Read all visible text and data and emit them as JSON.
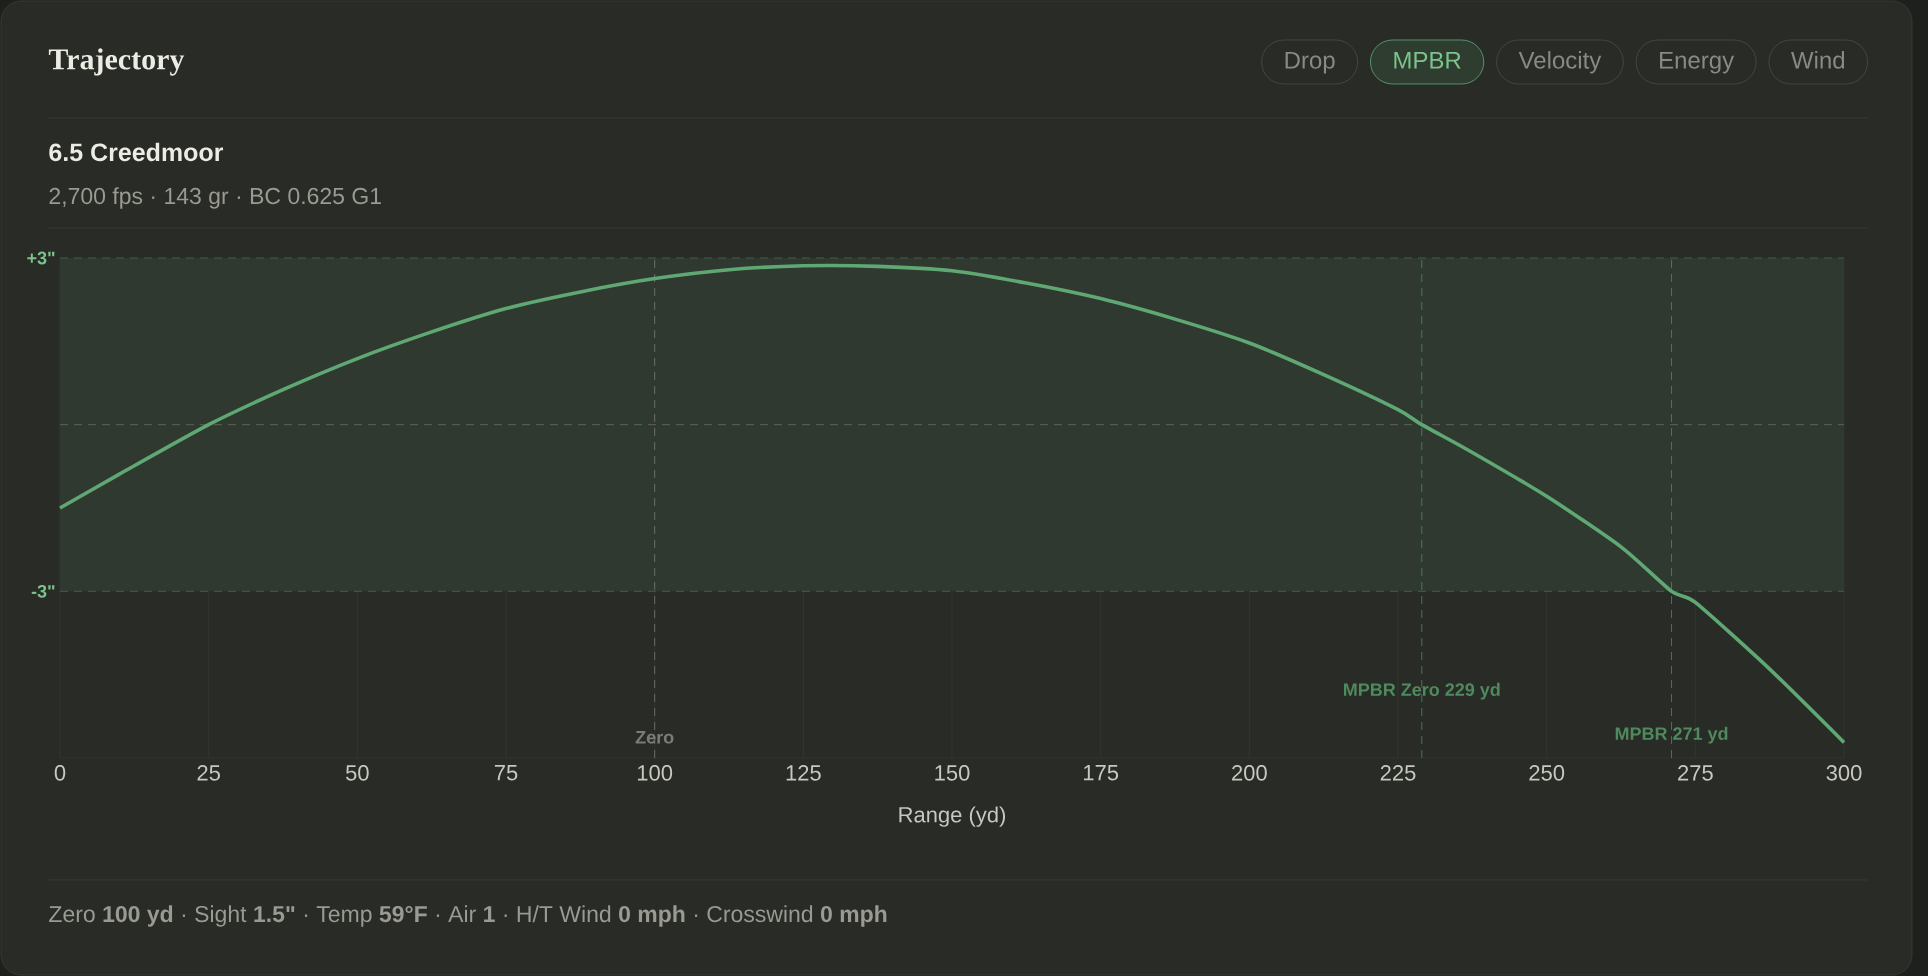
{
  "chart_data": {
    "type": "line",
    "title": "Trajectory",
    "subtitle": "6.5 Creedmoor",
    "xlabel": "Range (yd)",
    "annotations": [
      "2,700 fps · 143 gr · BC 0.625 G1",
      "Zero **100 yd** · Sight **1.5\"** · Temp **59°F** · Air **1** · H/T Wind **0 mph** · Crosswind **0 mph**",
      "Drop",
      "MPBR",
      "Velocity",
      "Energy",
      "Wind"
    ],
    "series": [
      {
        "color": "#5fa873",
        "x": [
          0,
          10,
          25,
          37.5,
          50,
          62.5,
          75,
          87.5,
          100,
          112.5,
          125,
          137.5,
          150,
          162.5,
          175,
          187.5,
          200,
          212.5,
          225,
          229,
          237.5,
          250,
          262.5,
          271,
          275,
          287.5,
          300
        ],
        "values": [
          -1.5,
          -0.89,
          0,
          0.63,
          1.19,
          1.67,
          2.09,
          2.39,
          2.63,
          2.79,
          2.86,
          2.85,
          2.77,
          2.55,
          2.27,
          1.9,
          1.47,
          0.9,
          0.27,
          0,
          -0.5,
          -1.29,
          -2.2,
          -3,
          -3.2,
          -4.4,
          -5.72
        ]
      }
    ],
    "xlim": [
      0,
      300
    ],
    "xticks": [
      0,
      25,
      50,
      75,
      100,
      125,
      150,
      175,
      200,
      225,
      250,
      275,
      300
    ],
    "ylim": [
      -6,
      3
    ],
    "yticks": [
      {
        "value": 3,
        "label": "+3\""
      },
      {
        "value": -3,
        "label": "-3\""
      }
    ],
    "grid": "x",
    "bands": [
      {
        "axis": "y",
        "from": -3,
        "to": 3,
        "color": "#2f3930"
      }
    ],
    "ref_lines": [
      {
        "axis": "y",
        "value": 3,
        "color": "#4a6a4f",
        "line_style": "dashed"
      },
      {
        "axis": "y",
        "value": 0,
        "color": "#676b63",
        "line_style": "dashed"
      },
      {
        "axis": "y",
        "value": -3,
        "color": "#4a6a4f",
        "line_style": "dashed"
      },
      {
        "axis": "x",
        "value": 100,
        "label": "Zero",
        "color": "#7a7d76",
        "line_style": "dashed"
      },
      {
        "axis": "x",
        "value": 229,
        "label": "MPBR Zero 229 yd",
        "color": "#4f8a5e",
        "line_style": "dashed"
      },
      {
        "axis": "x",
        "value": 271,
        "label": "MPBR 271 yd",
        "color": "#4f8a5e",
        "line_style": "dashed"
      }
    ]
  }
}
